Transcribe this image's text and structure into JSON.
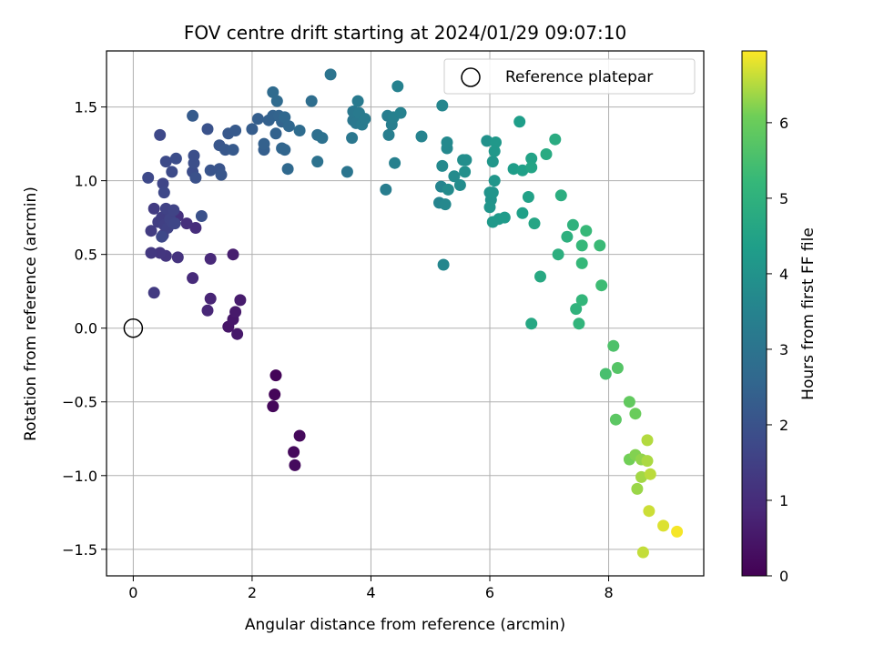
{
  "chart_data": {
    "type": "scatter",
    "title": "FOV centre drift starting at 2024/01/29 09:07:10",
    "xlabel": "Angular distance from reference (arcmin)",
    "ylabel": "Rotation from reference (arcmin)",
    "xlim": [
      -0.45,
      9.6
    ],
    "ylim": [
      -1.68,
      1.88
    ],
    "xticks": [
      0,
      2,
      4,
      6,
      8
    ],
    "xtick_labels": [
      "0",
      "2",
      "4",
      "6",
      "8"
    ],
    "yticks": [
      -1.5,
      -1.0,
      -0.5,
      0.0,
      0.5,
      1.0,
      1.5
    ],
    "ytick_labels": [
      "−1.5",
      "−1.0",
      "−0.5",
      "0.0",
      "0.5",
      "1.0",
      "1.5"
    ],
    "grid": true,
    "colormap": "viridis",
    "colorbar": {
      "label": "Hours from first FF file",
      "min": 0,
      "max": 6.95,
      "ticks": [
        0,
        1,
        2,
        3,
        4,
        5,
        6
      ],
      "tick_labels": [
        "0",
        "1",
        "2",
        "3",
        "4",
        "5",
        "6"
      ]
    },
    "legend": {
      "position": "top-right",
      "entries": [
        "Reference platepar"
      ]
    },
    "reference_point": {
      "x": 0,
      "y": 0
    },
    "series": [
      {
        "points": [
          [
            2.4,
            -0.32,
            0.1
          ],
          [
            2.38,
            -0.45,
            0.12
          ],
          [
            2.35,
            -0.53,
            0.15
          ],
          [
            2.8,
            -0.73,
            0.18
          ],
          [
            2.7,
            -0.84,
            0.2
          ],
          [
            2.72,
            -0.93,
            0.22
          ],
          [
            1.6,
            0.01,
            0.45
          ],
          [
            1.68,
            0.06,
            0.5
          ],
          [
            1.72,
            0.11,
            0.55
          ],
          [
            1.75,
            -0.04,
            0.52
          ],
          [
            1.8,
            0.19,
            0.6
          ],
          [
            1.68,
            0.5,
            0.65
          ],
          [
            1.3,
            0.2,
            0.8
          ],
          [
            1.25,
            0.12,
            0.85
          ],
          [
            1.3,
            0.47,
            0.9
          ],
          [
            1.0,
            0.34,
            0.95
          ],
          [
            1.05,
            0.68,
            1.0
          ],
          [
            0.9,
            0.71,
            1.05
          ],
          [
            0.75,
            0.76,
            1.1
          ],
          [
            0.75,
            0.48,
            1.15
          ],
          [
            0.55,
            0.49,
            1.2
          ],
          [
            0.45,
            0.51,
            1.25
          ],
          [
            0.3,
            0.51,
            1.3
          ],
          [
            0.35,
            0.24,
            1.35
          ],
          [
            0.3,
            0.66,
            1.4
          ],
          [
            0.35,
            0.81,
            1.4
          ],
          [
            0.42,
            0.72,
            1.45
          ],
          [
            0.48,
            0.75,
            1.45
          ],
          [
            0.5,
            0.63,
            1.5
          ],
          [
            0.52,
            0.7,
            1.5
          ],
          [
            0.55,
            0.81,
            1.55
          ],
          [
            0.58,
            0.68,
            1.55
          ],
          [
            0.62,
            0.74,
            1.6
          ],
          [
            0.65,
            0.72,
            1.6
          ],
          [
            0.68,
            0.8,
            1.6
          ],
          [
            0.7,
            0.71,
            1.65
          ],
          [
            0.5,
            0.98,
            1.65
          ],
          [
            0.52,
            0.92,
            1.7
          ],
          [
            0.48,
            0.62,
            1.7
          ],
          [
            0.25,
            1.02,
            1.75
          ],
          [
            0.45,
            1.31,
            1.75
          ],
          [
            0.55,
            1.13,
            1.8
          ],
          [
            0.65,
            1.06,
            1.8
          ],
          [
            0.72,
            1.15,
            1.85
          ],
          [
            1.0,
            1.06,
            1.85
          ],
          [
            1.02,
            1.12,
            1.9
          ],
          [
            1.02,
            1.17,
            1.9
          ],
          [
            1.05,
            1.02,
            1.95
          ],
          [
            1.15,
            0.76,
            1.95
          ],
          [
            1.25,
            1.35,
            2.0
          ],
          [
            1.3,
            1.07,
            2.05
          ],
          [
            1.45,
            1.08,
            2.05
          ],
          [
            1.48,
            1.04,
            2.1
          ],
          [
            1.45,
            1.24,
            2.1
          ],
          [
            1.55,
            1.21,
            2.15
          ],
          [
            1.6,
            1.32,
            2.15
          ],
          [
            1.68,
            1.21,
            2.2
          ],
          [
            1.72,
            1.34,
            2.2
          ],
          [
            1.0,
            1.44,
            2.25
          ],
          [
            2.0,
            1.35,
            2.3
          ],
          [
            2.1,
            1.42,
            2.35
          ],
          [
            2.2,
            1.21,
            2.35
          ],
          [
            2.2,
            1.25,
            2.4
          ],
          [
            2.28,
            1.41,
            2.4
          ],
          [
            2.35,
            1.44,
            2.45
          ],
          [
            2.4,
            1.32,
            2.45
          ],
          [
            2.45,
            1.44,
            2.5
          ],
          [
            2.5,
            1.4,
            2.5
          ],
          [
            2.5,
            1.22,
            2.55
          ],
          [
            2.55,
            1.21,
            2.55
          ],
          [
            2.55,
            1.43,
            2.6
          ],
          [
            2.62,
            1.37,
            2.6
          ],
          [
            2.6,
            1.08,
            2.65
          ],
          [
            2.35,
            1.6,
            2.7
          ],
          [
            2.42,
            1.54,
            2.7
          ],
          [
            2.8,
            1.34,
            2.75
          ],
          [
            3.0,
            1.54,
            2.8
          ],
          [
            3.1,
            1.31,
            2.85
          ],
          [
            3.18,
            1.29,
            2.9
          ],
          [
            3.1,
            1.13,
            2.95
          ],
          [
            3.32,
            1.72,
            3.0
          ],
          [
            3.6,
            1.06,
            3.05
          ],
          [
            3.68,
            1.29,
            3.1
          ],
          [
            3.7,
            1.41,
            3.1
          ],
          [
            3.7,
            1.47,
            3.15
          ],
          [
            3.75,
            1.39,
            3.15
          ],
          [
            3.78,
            1.54,
            3.2
          ],
          [
            3.8,
            1.46,
            3.2
          ],
          [
            3.85,
            1.38,
            3.25
          ],
          [
            3.9,
            1.42,
            3.25
          ],
          [
            4.25,
            0.94,
            3.3
          ],
          [
            4.28,
            1.44,
            3.3
          ],
          [
            4.3,
            1.31,
            3.35
          ],
          [
            4.35,
            1.38,
            3.35
          ],
          [
            4.38,
            1.43,
            3.4
          ],
          [
            4.4,
            1.12,
            3.4
          ],
          [
            4.45,
            1.64,
            3.45
          ],
          [
            4.5,
            1.46,
            3.45
          ],
          [
            4.85,
            1.3,
            3.5
          ],
          [
            5.15,
            0.85,
            3.55
          ],
          [
            5.18,
            0.96,
            3.55
          ],
          [
            5.2,
            1.51,
            3.6
          ],
          [
            5.22,
            0.43,
            3.6
          ],
          [
            5.25,
            0.84,
            3.65
          ],
          [
            5.28,
            1.22,
            3.65
          ],
          [
            5.28,
            1.26,
            3.7
          ],
          [
            5.2,
            1.1,
            3.7
          ],
          [
            5.3,
            0.94,
            3.75
          ],
          [
            5.4,
            1.03,
            3.75
          ],
          [
            5.5,
            0.97,
            3.8
          ],
          [
            5.55,
            1.14,
            3.85
          ],
          [
            5.6,
            1.14,
            3.85
          ],
          [
            5.58,
            1.06,
            3.9
          ],
          [
            5.95,
            1.27,
            3.95
          ],
          [
            6.0,
            0.92,
            4.0
          ],
          [
            6.02,
            0.87,
            4.0
          ],
          [
            6.0,
            0.82,
            4.05
          ],
          [
            6.05,
            0.92,
            4.05
          ],
          [
            6.08,
            1.0,
            4.1
          ],
          [
            6.05,
            1.13,
            4.1
          ],
          [
            6.1,
            1.26,
            4.15
          ],
          [
            6.08,
            1.2,
            4.15
          ],
          [
            6.05,
            0.72,
            4.2
          ],
          [
            6.15,
            0.74,
            4.2
          ],
          [
            6.25,
            0.75,
            4.25
          ],
          [
            6.4,
            1.08,
            4.3
          ],
          [
            6.5,
            1.4,
            4.35
          ],
          [
            6.55,
            0.78,
            4.4
          ],
          [
            6.55,
            1.07,
            4.4
          ],
          [
            6.65,
            0.89,
            4.45
          ],
          [
            6.7,
            1.15,
            4.5
          ],
          [
            6.7,
            1.09,
            4.55
          ],
          [
            6.75,
            0.71,
            4.6
          ],
          [
            6.7,
            0.03,
            4.65
          ],
          [
            6.85,
            0.35,
            4.7
          ],
          [
            6.95,
            1.18,
            4.75
          ],
          [
            7.1,
            1.28,
            4.8
          ],
          [
            7.2,
            0.9,
            4.85
          ],
          [
            7.15,
            0.5,
            4.9
          ],
          [
            7.3,
            0.62,
            4.95
          ],
          [
            7.4,
            0.7,
            5.0
          ],
          [
            7.45,
            0.13,
            5.05
          ],
          [
            7.5,
            0.03,
            5.1
          ],
          [
            7.55,
            0.19,
            5.15
          ],
          [
            7.55,
            0.44,
            5.2
          ],
          [
            7.55,
            0.56,
            5.2
          ],
          [
            7.62,
            0.66,
            5.25
          ],
          [
            7.85,
            0.56,
            5.3
          ],
          [
            7.88,
            0.29,
            5.35
          ],
          [
            7.95,
            -0.31,
            5.5
          ],
          [
            8.08,
            -0.12,
            5.6
          ],
          [
            8.15,
            -0.27,
            5.7
          ],
          [
            8.12,
            -0.62,
            5.8
          ],
          [
            8.35,
            -0.5,
            5.9
          ],
          [
            8.45,
            -0.58,
            6.0
          ],
          [
            8.35,
            -0.89,
            6.1
          ],
          [
            8.45,
            -0.86,
            6.2
          ],
          [
            8.55,
            -0.89,
            6.3
          ],
          [
            8.48,
            -1.09,
            6.35
          ],
          [
            8.55,
            -1.01,
            6.4
          ],
          [
            8.65,
            -0.9,
            6.45
          ],
          [
            8.65,
            -0.76,
            6.5
          ],
          [
            8.7,
            -0.99,
            6.55
          ],
          [
            8.58,
            -1.52,
            6.6
          ],
          [
            8.68,
            -1.24,
            6.65
          ],
          [
            8.92,
            -1.34,
            6.75
          ],
          [
            9.15,
            -1.38,
            6.9
          ]
        ]
      }
    ]
  }
}
